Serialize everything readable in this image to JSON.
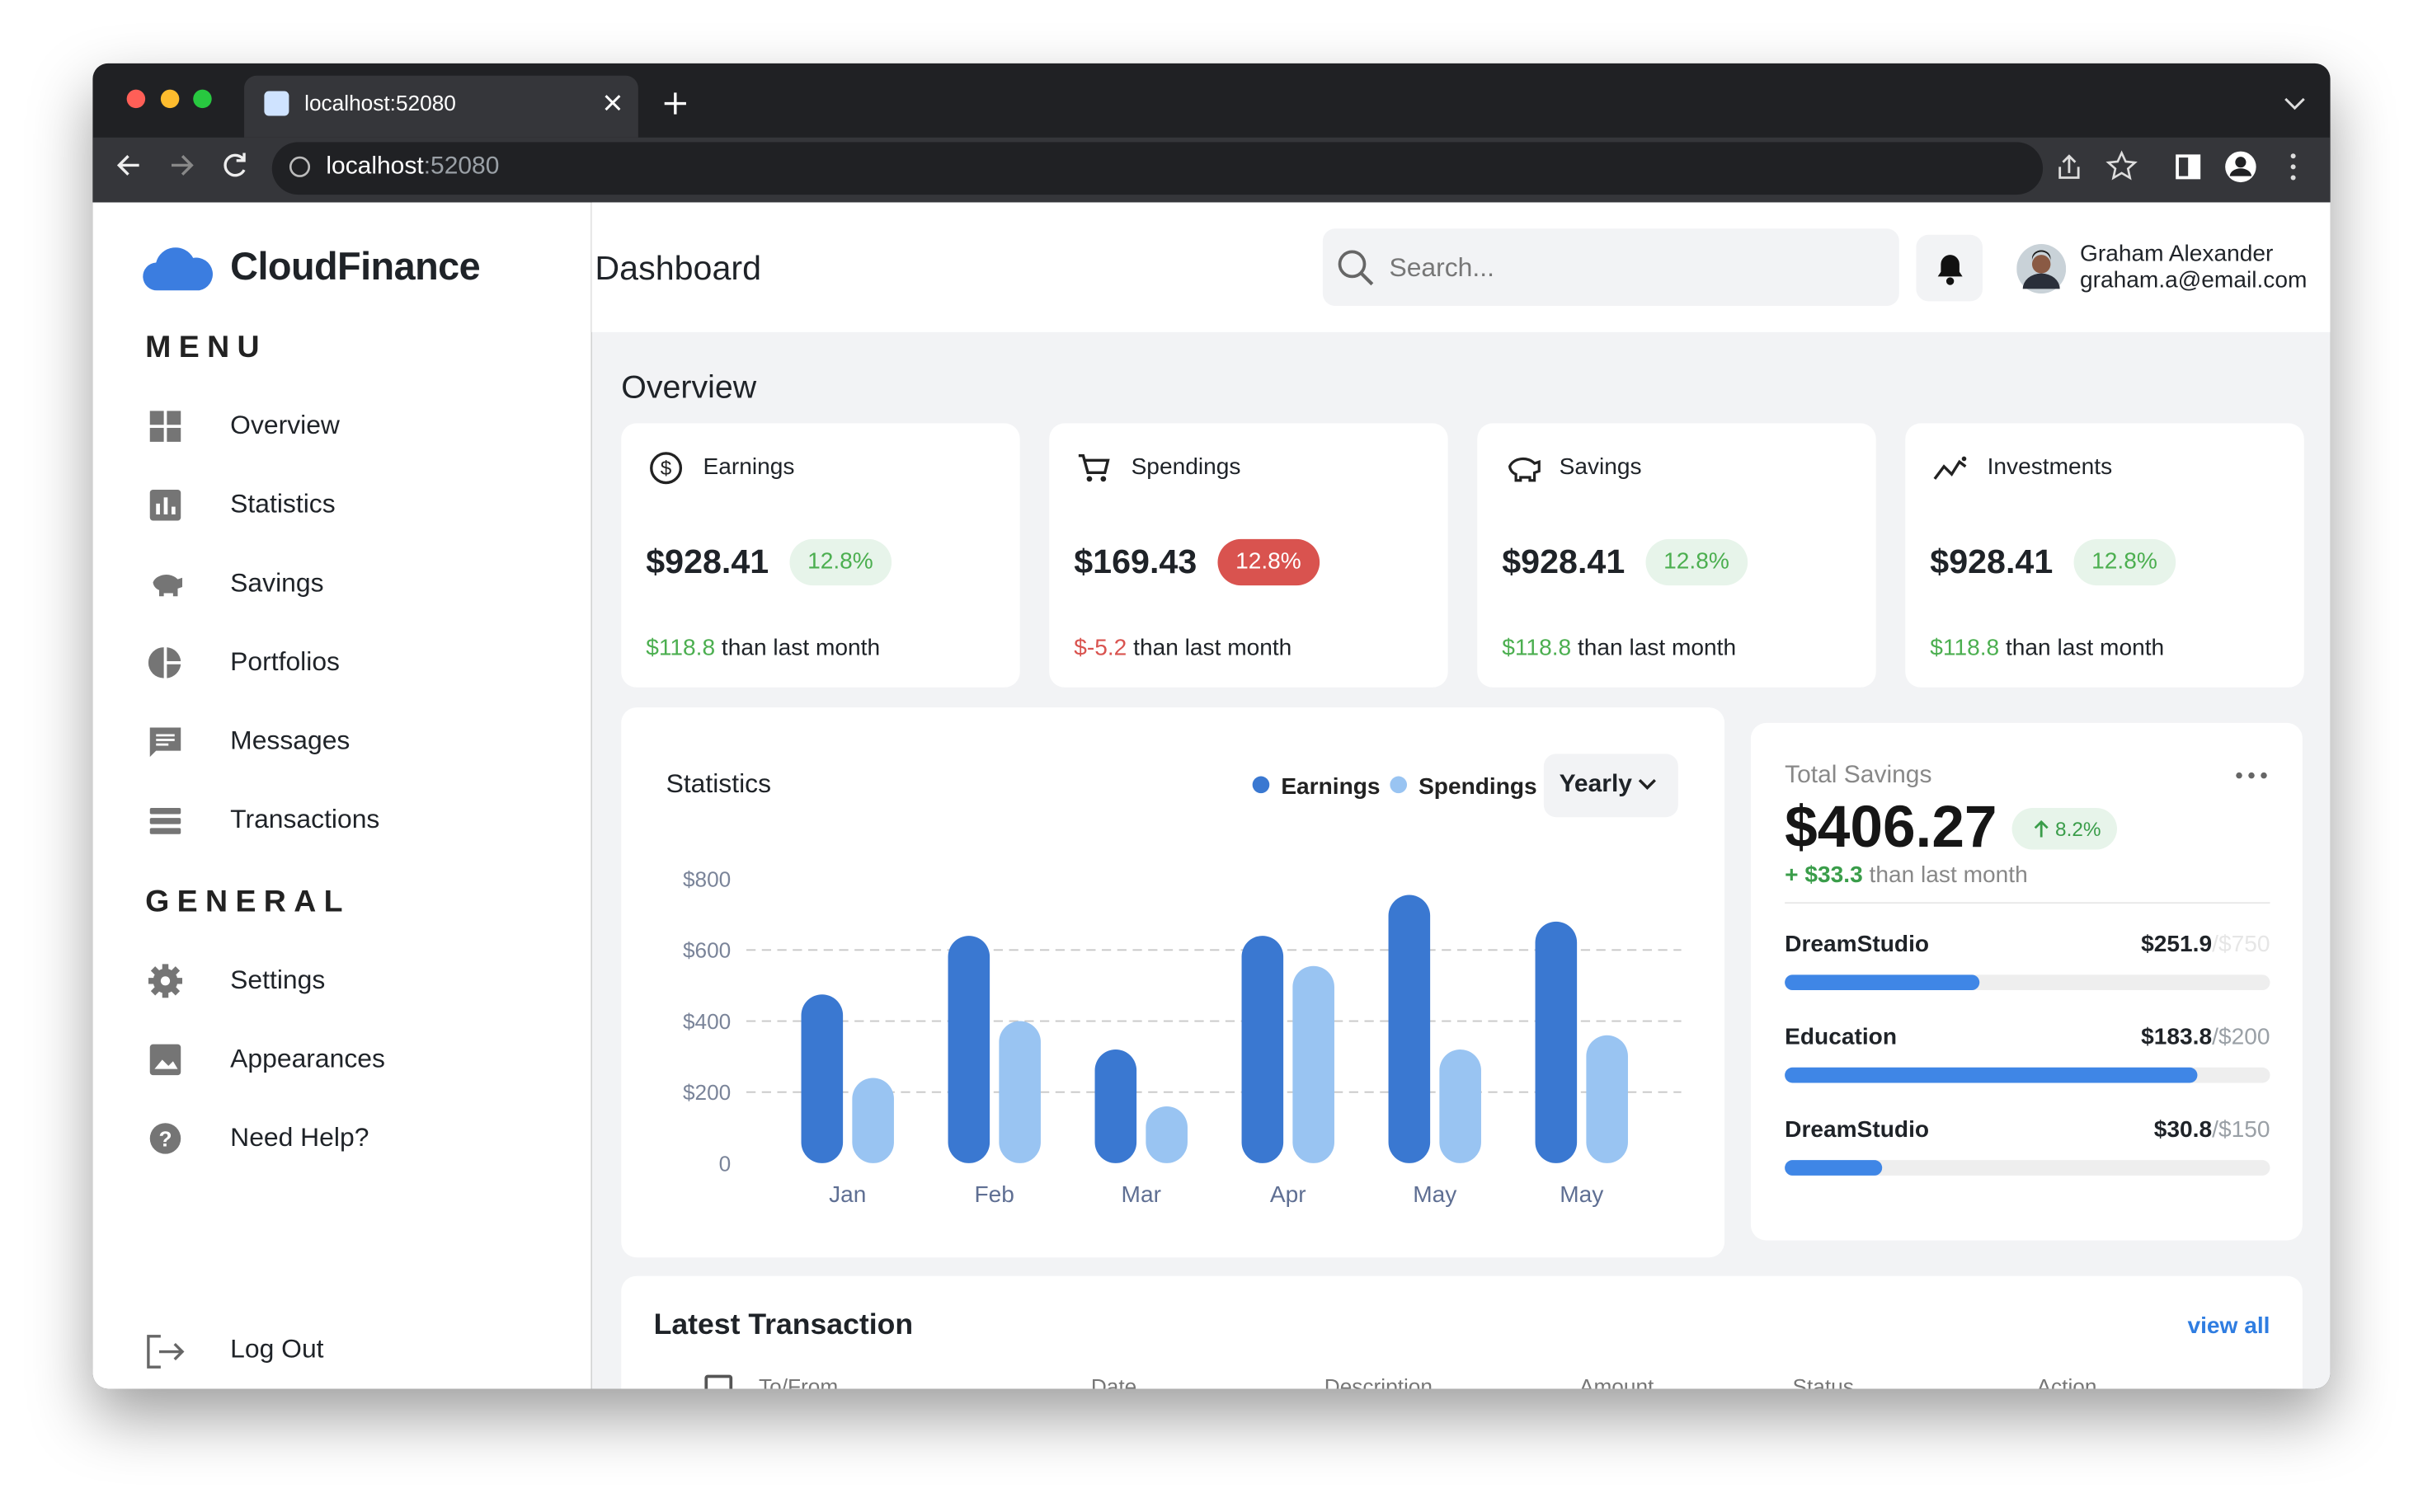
{
  "browser": {
    "tab_title": "localhost:52080",
    "url_host": "localhost",
    "url_port": ":52080"
  },
  "sidebar": {
    "brand": "CloudFinance",
    "menu_heading": "MENU",
    "menu": [
      "Overview",
      "Statistics",
      "Savings",
      "Portfolios",
      "Messages",
      "Transactions"
    ],
    "general_heading": "GENERAL",
    "general": [
      "Settings",
      "Appearances",
      "Need Help?"
    ],
    "logout": "Log Out"
  },
  "header": {
    "title": "Dashboard",
    "search_placeholder": "Search...",
    "user_name": "Graham Alexander",
    "user_email": "graham.a@email.com"
  },
  "overview": {
    "title": "Overview",
    "cards": [
      {
        "label": "Earnings",
        "amount": "$928.41",
        "badge": "12.8%",
        "change": "$118.8",
        "change_text": "than last month",
        "color": "#4caf50"
      },
      {
        "label": "Spendings",
        "amount": "$169.43",
        "badge": "12.8%",
        "change": "$-5.2",
        "change_text": "than last month",
        "color": "#d9534f"
      },
      {
        "label": "Savings",
        "amount": "$928.41",
        "badge": "12.8%",
        "change": "$118.8",
        "change_text": "than last month",
        "color": "#4caf50"
      },
      {
        "label": "Investments",
        "amount": "$928.41",
        "badge": "12.8%",
        "change": "$118.8",
        "change_text": "than last month",
        "color": "#4caf50"
      }
    ]
  },
  "chart_data": {
    "type": "bar",
    "title": "Statistics",
    "categories": [
      "Jan",
      "Feb",
      "Mar",
      "Apr",
      "May",
      "May"
    ],
    "series": [
      {
        "name": "Earnings",
        "color": "#3a78d1",
        "values": [
          475,
          640,
          320,
          640,
          755,
          680
        ]
      },
      {
        "name": "Spendings",
        "color": "#99c4f2",
        "values": [
          240,
          400,
          160,
          555,
          320,
          360
        ]
      }
    ],
    "ylim": [
      0,
      800
    ],
    "yticks": [
      0,
      {
        "value": 200,
        "label": "$200"
      },
      {
        "value": 400,
        "label": "$400"
      },
      {
        "value": 600,
        "label": "$600"
      },
      {
        "value": 800,
        "label": "$800"
      }
    ],
    "grid": true
  },
  "statistics_filter": {
    "period": "Yearly"
  },
  "total_savings": {
    "title": "Total Savings",
    "amount": "$406.27",
    "badge": "8.2%",
    "change": "+ $33.3",
    "change_text": "than last month",
    "items": [
      {
        "name": "DreamStudio",
        "amount": "$251.9",
        "limit": "/$750",
        "progress": 40
      },
      {
        "name": "Education",
        "amount": "$183.8",
        "limit": "/$200",
        "progress": 85
      },
      {
        "name": "DreamStudio",
        "amount": "$30.8",
        "limit": "/$150",
        "progress": 20
      }
    ]
  },
  "transactions": {
    "title": "Latest Transaction",
    "view_all": "view all",
    "columns": [
      "To/From",
      "Date",
      "Description",
      "Amount",
      "Status",
      "Action"
    ]
  }
}
